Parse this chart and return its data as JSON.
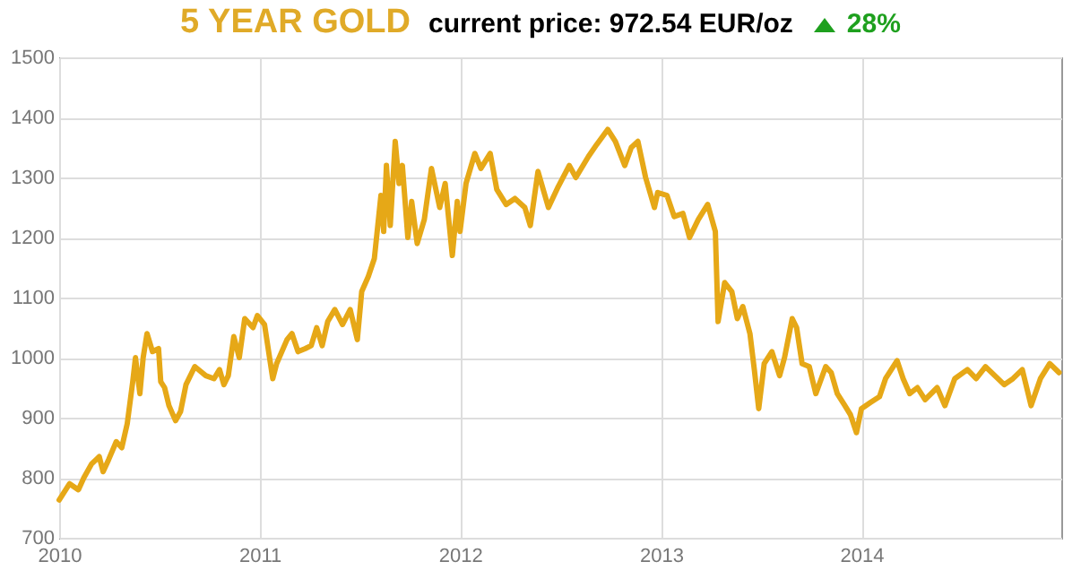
{
  "chart_data": {
    "type": "line",
    "title": "5 YEAR GOLD",
    "subtitle": "current price: 972.54 EUR/oz",
    "annotations": [
      "28%"
    ],
    "x": [
      "2010-01-01",
      "2010-01-20",
      "2010-02-05",
      "2010-02-15",
      "2010-03-01",
      "2010-03-15",
      "2010-03-22",
      "2010-04-01",
      "2010-04-15",
      "2010-04-25",
      "2010-05-05",
      "2010-05-15",
      "2010-05-20",
      "2010-05-28",
      "2010-06-03",
      "2010-06-10",
      "2010-06-20",
      "2010-07-01",
      "2010-07-05",
      "2010-07-12",
      "2010-07-20",
      "2010-08-01",
      "2010-08-10",
      "2010-08-20",
      "2010-09-05",
      "2010-09-25",
      "2010-10-10",
      "2010-10-20",
      "2010-10-28",
      "2010-11-05",
      "2010-11-15",
      "2010-11-25",
      "2010-12-05",
      "2010-12-20",
      "2010-12-28",
      "2011-01-10",
      "2011-01-25",
      "2011-02-01",
      "2011-02-20",
      "2011-03-01",
      "2011-03-12",
      "2011-03-25",
      "2011-04-05",
      "2011-04-15",
      "2011-04-25",
      "2011-05-05",
      "2011-05-18",
      "2011-06-01",
      "2011-06-15",
      "2011-06-28",
      "2011-07-06",
      "2011-07-18",
      "2011-07-29",
      "2011-08-10",
      "2011-08-15",
      "2011-08-20",
      "2011-08-27",
      "2011-09-05",
      "2011-09-12",
      "2011-09-18",
      "2011-09-28",
      "2011-10-05",
      "2011-10-15",
      "2011-10-28",
      "2011-11-10",
      "2011-11-25",
      "2011-12-05",
      "2011-12-18",
      "2011-12-27",
      "2012-01-01",
      "2012-01-12",
      "2012-01-28",
      "2012-02-08",
      "2012-02-25",
      "2012-03-08",
      "2012-03-25",
      "2012-04-10",
      "2012-04-28",
      "2012-05-08",
      "2012-05-22",
      "2012-06-10",
      "2012-06-28",
      "2012-07-18",
      "2012-07-30",
      "2012-08-22",
      "2012-09-06",
      "2012-09-26",
      "2012-10-10",
      "2012-10-27",
      "2012-11-08",
      "2012-11-20",
      "2012-12-04",
      "2012-12-20",
      "2012-12-26",
      "2013-01-12",
      "2013-01-25",
      "2013-02-10",
      "2013-02-22",
      "2013-03-10",
      "2013-03-27",
      "2013-04-10",
      "2013-04-15",
      "2013-04-27",
      "2013-05-10",
      "2013-05-20",
      "2013-05-30",
      "2013-06-12",
      "2013-06-20",
      "2013-06-28",
      "2013-07-08",
      "2013-07-22",
      "2013-08-05",
      "2013-08-14",
      "2013-08-28",
      "2013-09-05",
      "2013-09-15",
      "2013-09-28",
      "2013-10-10",
      "2013-10-28",
      "2013-11-07",
      "2013-11-18",
      "2013-12-02",
      "2013-12-12",
      "2013-12-23",
      "2014-01-01",
      "2014-01-17",
      "2014-02-03",
      "2014-02-14",
      "2014-03-07",
      "2014-03-18",
      "2014-03-30",
      "2014-04-13",
      "2014-04-27",
      "2014-05-19",
      "2014-06-02",
      "2014-06-20",
      "2014-07-13",
      "2014-07-29",
      "2014-08-15",
      "2014-09-01",
      "2014-09-18",
      "2014-10-04",
      "2014-10-21",
      "2014-11-06",
      "2014-11-23",
      "2014-12-10",
      "2014-12-27"
    ],
    "series": [
      {
        "color": "#e6a817",
        "values": [
          763,
          790,
          780,
          800,
          823,
          835,
          810,
          830,
          860,
          850,
          890,
          960,
          1000,
          940,
          1000,
          1040,
          1010,
          1015,
          960,
          950,
          920,
          895,
          910,
          955,
          985,
          970,
          965,
          980,
          955,
          970,
          1035,
          1000,
          1065,
          1050,
          1070,
          1055,
          965,
          990,
          1030,
          1040,
          1010,
          1015,
          1020,
          1050,
          1020,
          1060,
          1080,
          1055,
          1080,
          1030,
          1110,
          1135,
          1165,
          1270,
          1210,
          1320,
          1220,
          1360,
          1290,
          1320,
          1200,
          1260,
          1190,
          1230,
          1315,
          1250,
          1290,
          1170,
          1260,
          1210,
          1290,
          1340,
          1315,
          1340,
          1280,
          1255,
          1265,
          1250,
          1220,
          1310,
          1250,
          1285,
          1320,
          1300,
          1335,
          1355,
          1380,
          1360,
          1320,
          1350,
          1360,
          1300,
          1250,
          1275,
          1270,
          1235,
          1240,
          1200,
          1230,
          1255,
          1210,
          1060,
          1125,
          1110,
          1065,
          1085,
          1040,
          980,
          915,
          990,
          1010,
          970,
          1000,
          1065,
          1050,
          990,
          985,
          940,
          985,
          975,
          940,
          920,
          905,
          875,
          915,
          925,
          935,
          965,
          995,
          965,
          940,
          950,
          930,
          950,
          920,
          965,
          980,
          965,
          985,
          970,
          955,
          965,
          980,
          920,
          965,
          990,
          975
        ]
      }
    ],
    "xlim": [
      "2010-01-01",
      "2014-12-31"
    ],
    "xticks": [
      "2010",
      "2011",
      "2012",
      "2013",
      "2014"
    ],
    "ylim": [
      700,
      1500
    ],
    "yticks": [
      700,
      800,
      900,
      1000,
      1100,
      1200,
      1300,
      1400,
      1500
    ],
    "grid": true,
    "line_style": "solid",
    "marker": "none"
  }
}
